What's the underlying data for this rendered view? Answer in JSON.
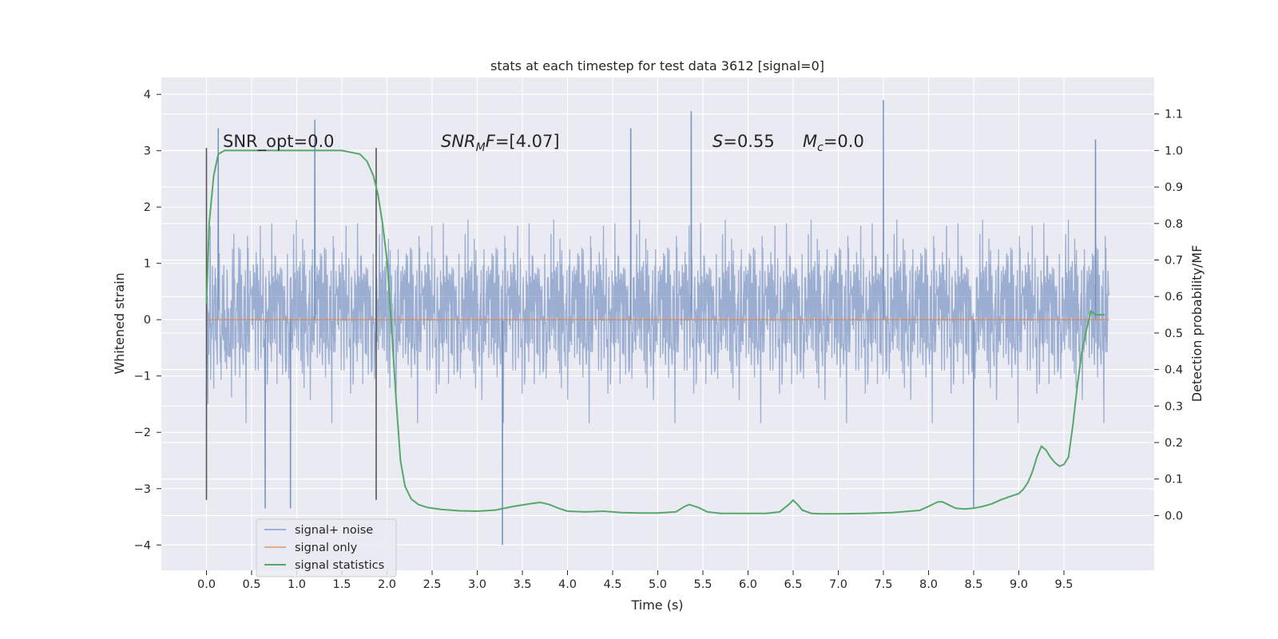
{
  "chart_data": {
    "type": "line",
    "title": "stats at each timestep for test data 3612 [signal=0]",
    "xlabel": "Time (s)",
    "ylabel": "Whitened strain",
    "y2label": "Detection probability/MF",
    "xlim": [
      -0.5,
      10.5
    ],
    "ylim": [
      -4.45,
      4.3
    ],
    "y2lim": [
      -0.15,
      1.2
    ],
    "x_ticks": [
      "0.0",
      "0.5",
      "1.0",
      "1.5",
      "2.0",
      "2.5",
      "3.0",
      "3.5",
      "4.0",
      "4.5",
      "5.0",
      "5.5",
      "6.0",
      "6.5",
      "7.0",
      "7.5",
      "8.0",
      "8.5",
      "9.0",
      "9.5"
    ],
    "y_ticks": [
      "4",
      "3",
      "2",
      "1",
      "0",
      "−1",
      "−2",
      "−3",
      "−4"
    ],
    "y2_ticks": [
      "1.1",
      "1.0",
      "0.9",
      "0.8",
      "0.7",
      "0.6",
      "0.5",
      "0.4",
      "0.3",
      "0.2",
      "0.1",
      "0.0"
    ],
    "grid": true,
    "legend_position": "lower-left",
    "annotations": {
      "snr_opt": "SNR_opt=0.0",
      "snr_mf_sym": "SNR",
      "snr_mf_sub": "M",
      "snr_mf_f": "F",
      "snr_mf_val": "=[4.07]",
      "s_sym": "S",
      "s_val": "=0.55",
      "mc_sym": "M",
      "mc_sub": "c",
      "mc_val": "=0.0"
    },
    "markers": {
      "vertical_lines_x": [
        0.0,
        1.88
      ],
      "ymin": -3.2,
      "ymax": 3.05
    },
    "series": [
      {
        "name": "signal+ noise",
        "color": "#4c72b0",
        "alpha": 0.5,
        "x_range": [
          0.0,
          10.0
        ],
        "sample_rate_shown": 2048,
        "note_envelope": "approx ±2.5 with peaks to 3.9 and −4.0",
        "peaks": [
          [
            0.13,
            3.4
          ],
          [
            1.2,
            3.55
          ],
          [
            4.7,
            3.4
          ],
          [
            5.37,
            3.7
          ],
          [
            7.5,
            3.9
          ],
          [
            9.85,
            3.2
          ],
          [
            3.28,
            -4.0
          ],
          [
            0.65,
            -3.35
          ],
          [
            0.93,
            -3.35
          ],
          [
            8.5,
            -3.35
          ]
        ]
      },
      {
        "name": "signal only",
        "color": "#dd8452",
        "values_constant": 0.0,
        "x_range": [
          0.0,
          10.0
        ]
      },
      {
        "name": "signal statistics",
        "color": "#55a868",
        "axis": "right",
        "x": [
          0.0,
          0.03,
          0.08,
          0.13,
          0.2,
          0.3,
          0.5,
          0.8,
          1.0,
          1.2,
          1.5,
          1.7,
          1.78,
          1.85,
          1.9,
          1.95,
          2.0,
          2.05,
          2.1,
          2.15,
          2.2,
          2.27,
          2.35,
          2.45,
          2.6,
          2.8,
          3.0,
          3.2,
          3.4,
          3.6,
          3.7,
          3.8,
          3.9,
          4.0,
          4.2,
          4.4,
          4.6,
          4.8,
          5.0,
          5.2,
          5.3,
          5.35,
          5.45,
          5.55,
          5.7,
          6.0,
          6.2,
          6.35,
          6.45,
          6.5,
          6.55,
          6.6,
          6.7,
          6.8,
          7.0,
          7.3,
          7.6,
          7.9,
          8.0,
          8.1,
          8.15,
          8.2,
          8.3,
          8.4,
          8.5,
          8.6,
          8.7,
          8.8,
          8.9,
          9.0,
          9.05,
          9.1,
          9.15,
          9.2,
          9.25,
          9.3,
          9.35,
          9.4,
          9.45,
          9.5,
          9.55,
          9.6,
          9.65,
          9.7,
          9.75,
          9.8,
          9.85,
          9.9,
          9.95
        ],
        "values": [
          0.58,
          0.8,
          0.93,
          0.99,
          1.0,
          1.0,
          1.0,
          1.0,
          1.0,
          1.0,
          1.0,
          0.99,
          0.97,
          0.93,
          0.88,
          0.8,
          0.7,
          0.52,
          0.32,
          0.15,
          0.08,
          0.045,
          0.03,
          0.022,
          0.017,
          0.013,
          0.012,
          0.015,
          0.025,
          0.033,
          0.036,
          0.03,
          0.02,
          0.012,
          0.01,
          0.012,
          0.008,
          0.007,
          0.007,
          0.01,
          0.025,
          0.03,
          0.022,
          0.01,
          0.006,
          0.006,
          0.006,
          0.01,
          0.03,
          0.042,
          0.03,
          0.015,
          0.006,
          0.005,
          0.005,
          0.006,
          0.008,
          0.014,
          0.025,
          0.037,
          0.038,
          0.032,
          0.02,
          0.018,
          0.02,
          0.025,
          0.032,
          0.043,
          0.052,
          0.06,
          0.072,
          0.09,
          0.12,
          0.16,
          0.19,
          0.18,
          0.16,
          0.145,
          0.135,
          0.14,
          0.16,
          0.25,
          0.36,
          0.45,
          0.51,
          0.56,
          0.55,
          0.55,
          0.55
        ]
      }
    ]
  }
}
